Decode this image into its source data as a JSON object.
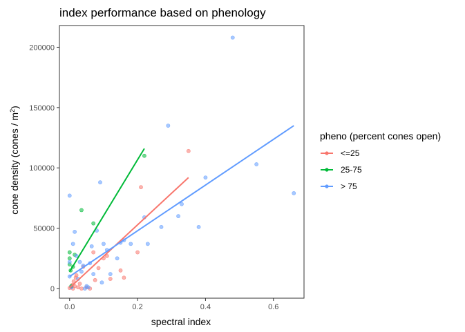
{
  "chart_data": {
    "type": "scatter",
    "title": "index performance based on phenology",
    "xlabel": "spectral index",
    "ylabel_main": "cone density (cones / m",
    "ylabel_sup": "2",
    "ylabel_close": ")",
    "xlim": [
      -0.03,
      0.69
    ],
    "ylim": [
      -8000,
      218000
    ],
    "xticks": [
      0.0,
      0.2,
      0.4,
      0.6
    ],
    "xtick_labels": [
      "0.0",
      "0.2",
      "0.4",
      "0.6"
    ],
    "yticks": [
      0,
      50000,
      100000,
      150000,
      200000
    ],
    "ytick_labels": [
      "0",
      "50000",
      "100000",
      "150000",
      "200000"
    ],
    "grid": false,
    "legend": {
      "title": "pheno (percent cones open)",
      "position": "right"
    },
    "series": [
      {
        "name": "<=25",
        "color": "#F8766D",
        "points": [
          [
            0.0,
            500
          ],
          [
            0.005,
            1500
          ],
          [
            0.008,
            3000
          ],
          [
            0.01,
            0
          ],
          [
            0.012,
            6000
          ],
          [
            0.015,
            2000
          ],
          [
            0.018,
            9000
          ],
          [
            0.02,
            11000
          ],
          [
            0.025,
            1000
          ],
          [
            0.03,
            4000
          ],
          [
            0.035,
            0
          ],
          [
            0.04,
            18000
          ],
          [
            0.05,
            1000
          ],
          [
            0.06,
            0
          ],
          [
            0.07,
            30000
          ],
          [
            0.075,
            7000
          ],
          [
            0.085,
            17000
          ],
          [
            0.1,
            25000
          ],
          [
            0.11,
            27000
          ],
          [
            0.12,
            8000
          ],
          [
            0.15,
            15000
          ],
          [
            0.16,
            9000
          ],
          [
            0.2,
            30000
          ],
          [
            0.21,
            84000
          ],
          [
            0.35,
            114000
          ]
        ],
        "trend": [
          [
            0.0,
            500
          ],
          [
            0.35,
            92000
          ]
        ]
      },
      {
        "name": "25-75",
        "color": "#00BA38",
        "points": [
          [
            0.0,
            30000
          ],
          [
            0.0,
            25000
          ],
          [
            0.0,
            20000
          ],
          [
            0.003,
            15000
          ],
          [
            0.005,
            2000
          ],
          [
            0.01,
            18000
          ],
          [
            0.015,
            28000
          ],
          [
            0.035,
            65000
          ],
          [
            0.07,
            54000
          ],
          [
            0.22,
            110000
          ]
        ],
        "trend": [
          [
            0.0,
            14000
          ],
          [
            0.22,
            116000
          ]
        ]
      },
      {
        "name": "> 75",
        "color": "#619CFF",
        "points": [
          [
            0.0,
            77000
          ],
          [
            0.0,
            10000
          ],
          [
            0.0,
            22000
          ],
          [
            0.005,
            1000
          ],
          [
            0.01,
            37000
          ],
          [
            0.015,
            47000
          ],
          [
            0.02,
            27000
          ],
          [
            0.025,
            8000
          ],
          [
            0.03,
            22000
          ],
          [
            0.035,
            14000
          ],
          [
            0.04,
            19000
          ],
          [
            0.045,
            0
          ],
          [
            0.05,
            2000
          ],
          [
            0.055,
            1000
          ],
          [
            0.06,
            21000
          ],
          [
            0.065,
            35000
          ],
          [
            0.07,
            12000
          ],
          [
            0.08,
            48000
          ],
          [
            0.09,
            88000
          ],
          [
            0.095,
            5000
          ],
          [
            0.1,
            37000
          ],
          [
            0.11,
            32000
          ],
          [
            0.12,
            12000
          ],
          [
            0.14,
            25000
          ],
          [
            0.15,
            38000
          ],
          [
            0.16,
            40000
          ],
          [
            0.18,
            37000
          ],
          [
            0.22,
            59000
          ],
          [
            0.23,
            37000
          ],
          [
            0.27,
            51000
          ],
          [
            0.29,
            135000
          ],
          [
            0.32,
            60000
          ],
          [
            0.33,
            70000
          ],
          [
            0.38,
            51000
          ],
          [
            0.4,
            92000
          ],
          [
            0.48,
            208000
          ],
          [
            0.55,
            103000
          ],
          [
            0.66,
            79000
          ]
        ],
        "trend": [
          [
            0.0,
            10000
          ],
          [
            0.66,
            135000
          ]
        ]
      }
    ]
  }
}
